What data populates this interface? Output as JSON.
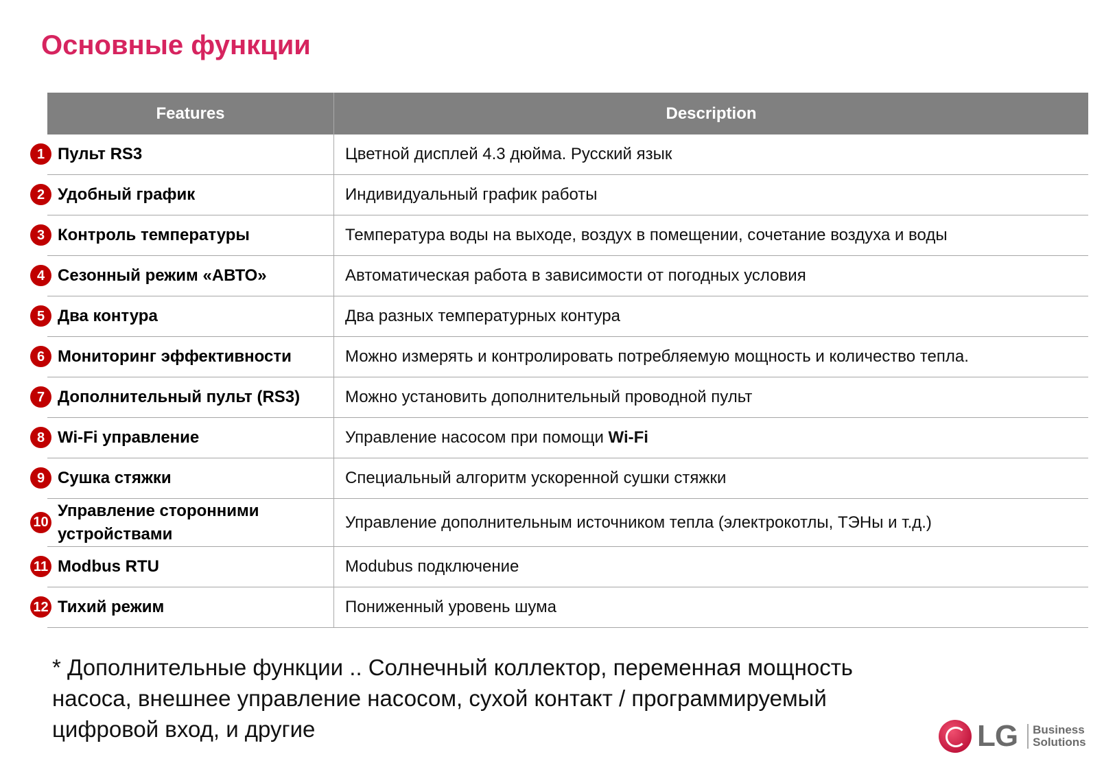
{
  "title": "Основные функции",
  "table": {
    "headers": [
      "Features",
      "Description"
    ],
    "rows": [
      {
        "n": "1",
        "feature": "Пульт RS3",
        "desc": "Цветной дисплей 4.3 дюйма. Русский язык"
      },
      {
        "n": "2",
        "feature": "Удобный график",
        "desc": "Индивидуальный график работы"
      },
      {
        "n": "3",
        "feature": "Контроль температуры",
        "desc": "Температура воды на выходе, воздух в помещении, сочетание воздуха и воды"
      },
      {
        "n": "4",
        "feature": "Сезонный режим «АВТО»",
        "desc": "Автоматическая работа в зависимости от погодных условия"
      },
      {
        "n": "5",
        "feature": "Два контура",
        "desc": "Два разных температурных контура"
      },
      {
        "n": "6",
        "feature": "Мониторинг эффективности",
        "desc": "Можно измерять и контролировать потребляемую мощность и количество тепла."
      },
      {
        "n": "7",
        "feature": "Дополнительный пульт (RS3)",
        "desc": "Можно установить дополнительный проводной пульт"
      },
      {
        "n": "8",
        "feature": "Wi-Fi управление",
        "desc": "Управление насосом при помощи ",
        "desc_bold": "Wi-Fi"
      },
      {
        "n": "9",
        "feature": "Сушка стяжки",
        "desc": "Специальный алгоритм ускоренной сушки стяжки"
      },
      {
        "n": "10",
        "feature": "Управление сторонними устройствами",
        "desc": "Управление дополнительным источником тепла (электрокотлы, ТЭНы и т.д.)"
      },
      {
        "n": "11",
        "feature": "Modbus RTU",
        "desc": "Modubus подключение"
      },
      {
        "n": "12",
        "feature": "Тихий режим",
        "desc": "Пониженный уровень шума"
      }
    ]
  },
  "footnote": "* Дополнительные функции .. Солнечный коллектор, переменная мощность насоса, внешнее управление насосом, сухой контакт / программируемый цифровой вход, и другие",
  "logo": {
    "brand": "LG",
    "line1": "Business",
    "line2": "Solutions"
  }
}
